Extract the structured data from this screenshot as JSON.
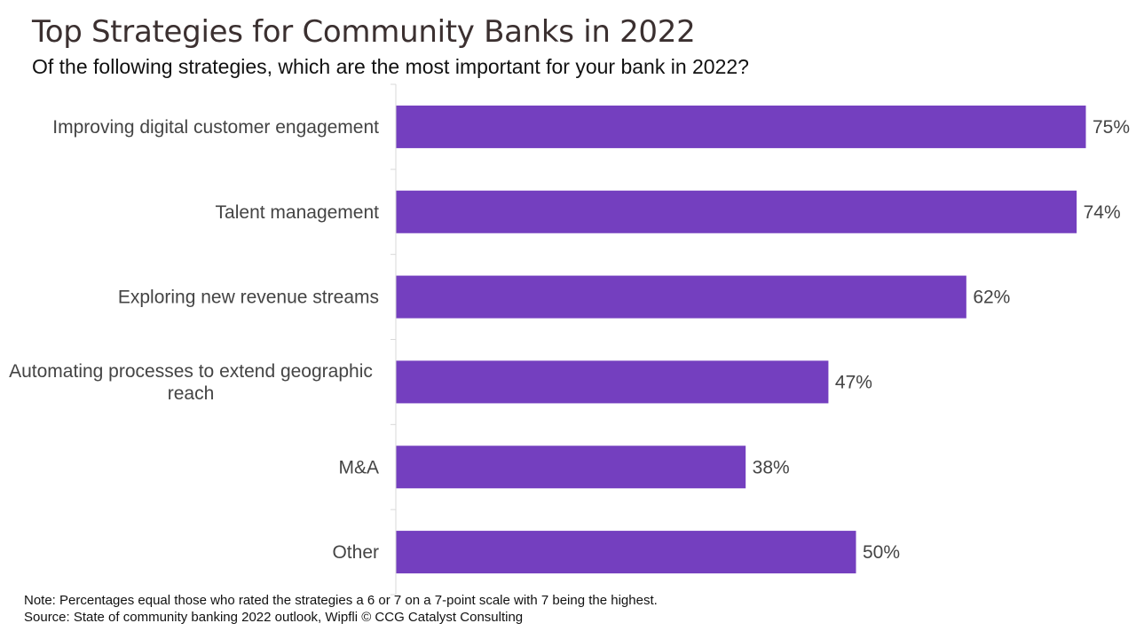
{
  "title": "Top Strategies for Community Banks in 2022",
  "subtitle": "Of the following strategies, which are the most important for your bank in 2022?",
  "note": "Note: Percentages equal those who rated the strategies a 6 or 7 on a 7-point scale with 7 being the highest.",
  "source": "Source: State of community banking 2022 outlook, Wipfli © CCG Catalyst Consulting",
  "colors": {
    "bar": "#743fbf",
    "label": "#444444",
    "axis": "#d9d9d9"
  },
  "chart_data": {
    "type": "bar",
    "orientation": "horizontal",
    "categories": [
      "Improving digital customer engagement",
      "Talent management",
      "Exploring new revenue streams",
      "Automating processes to extend geographic reach",
      "M&A",
      "Other"
    ],
    "category_lines": [
      [
        "Improving digital customer engagement"
      ],
      [
        "Talent management"
      ],
      [
        "Exploring new revenue streams"
      ],
      [
        "Automating processes to extend geographic",
        "reach"
      ],
      [
        "M&A"
      ],
      [
        "Other"
      ]
    ],
    "values": [
      75,
      74,
      62,
      47,
      38,
      50
    ],
    "data_labels": [
      "75%",
      "74%",
      "62%",
      "47%",
      "38%",
      "50%"
    ],
    "unit": "%",
    "xlim": [
      0,
      75
    ],
    "gridlines": false,
    "legend": "none"
  }
}
